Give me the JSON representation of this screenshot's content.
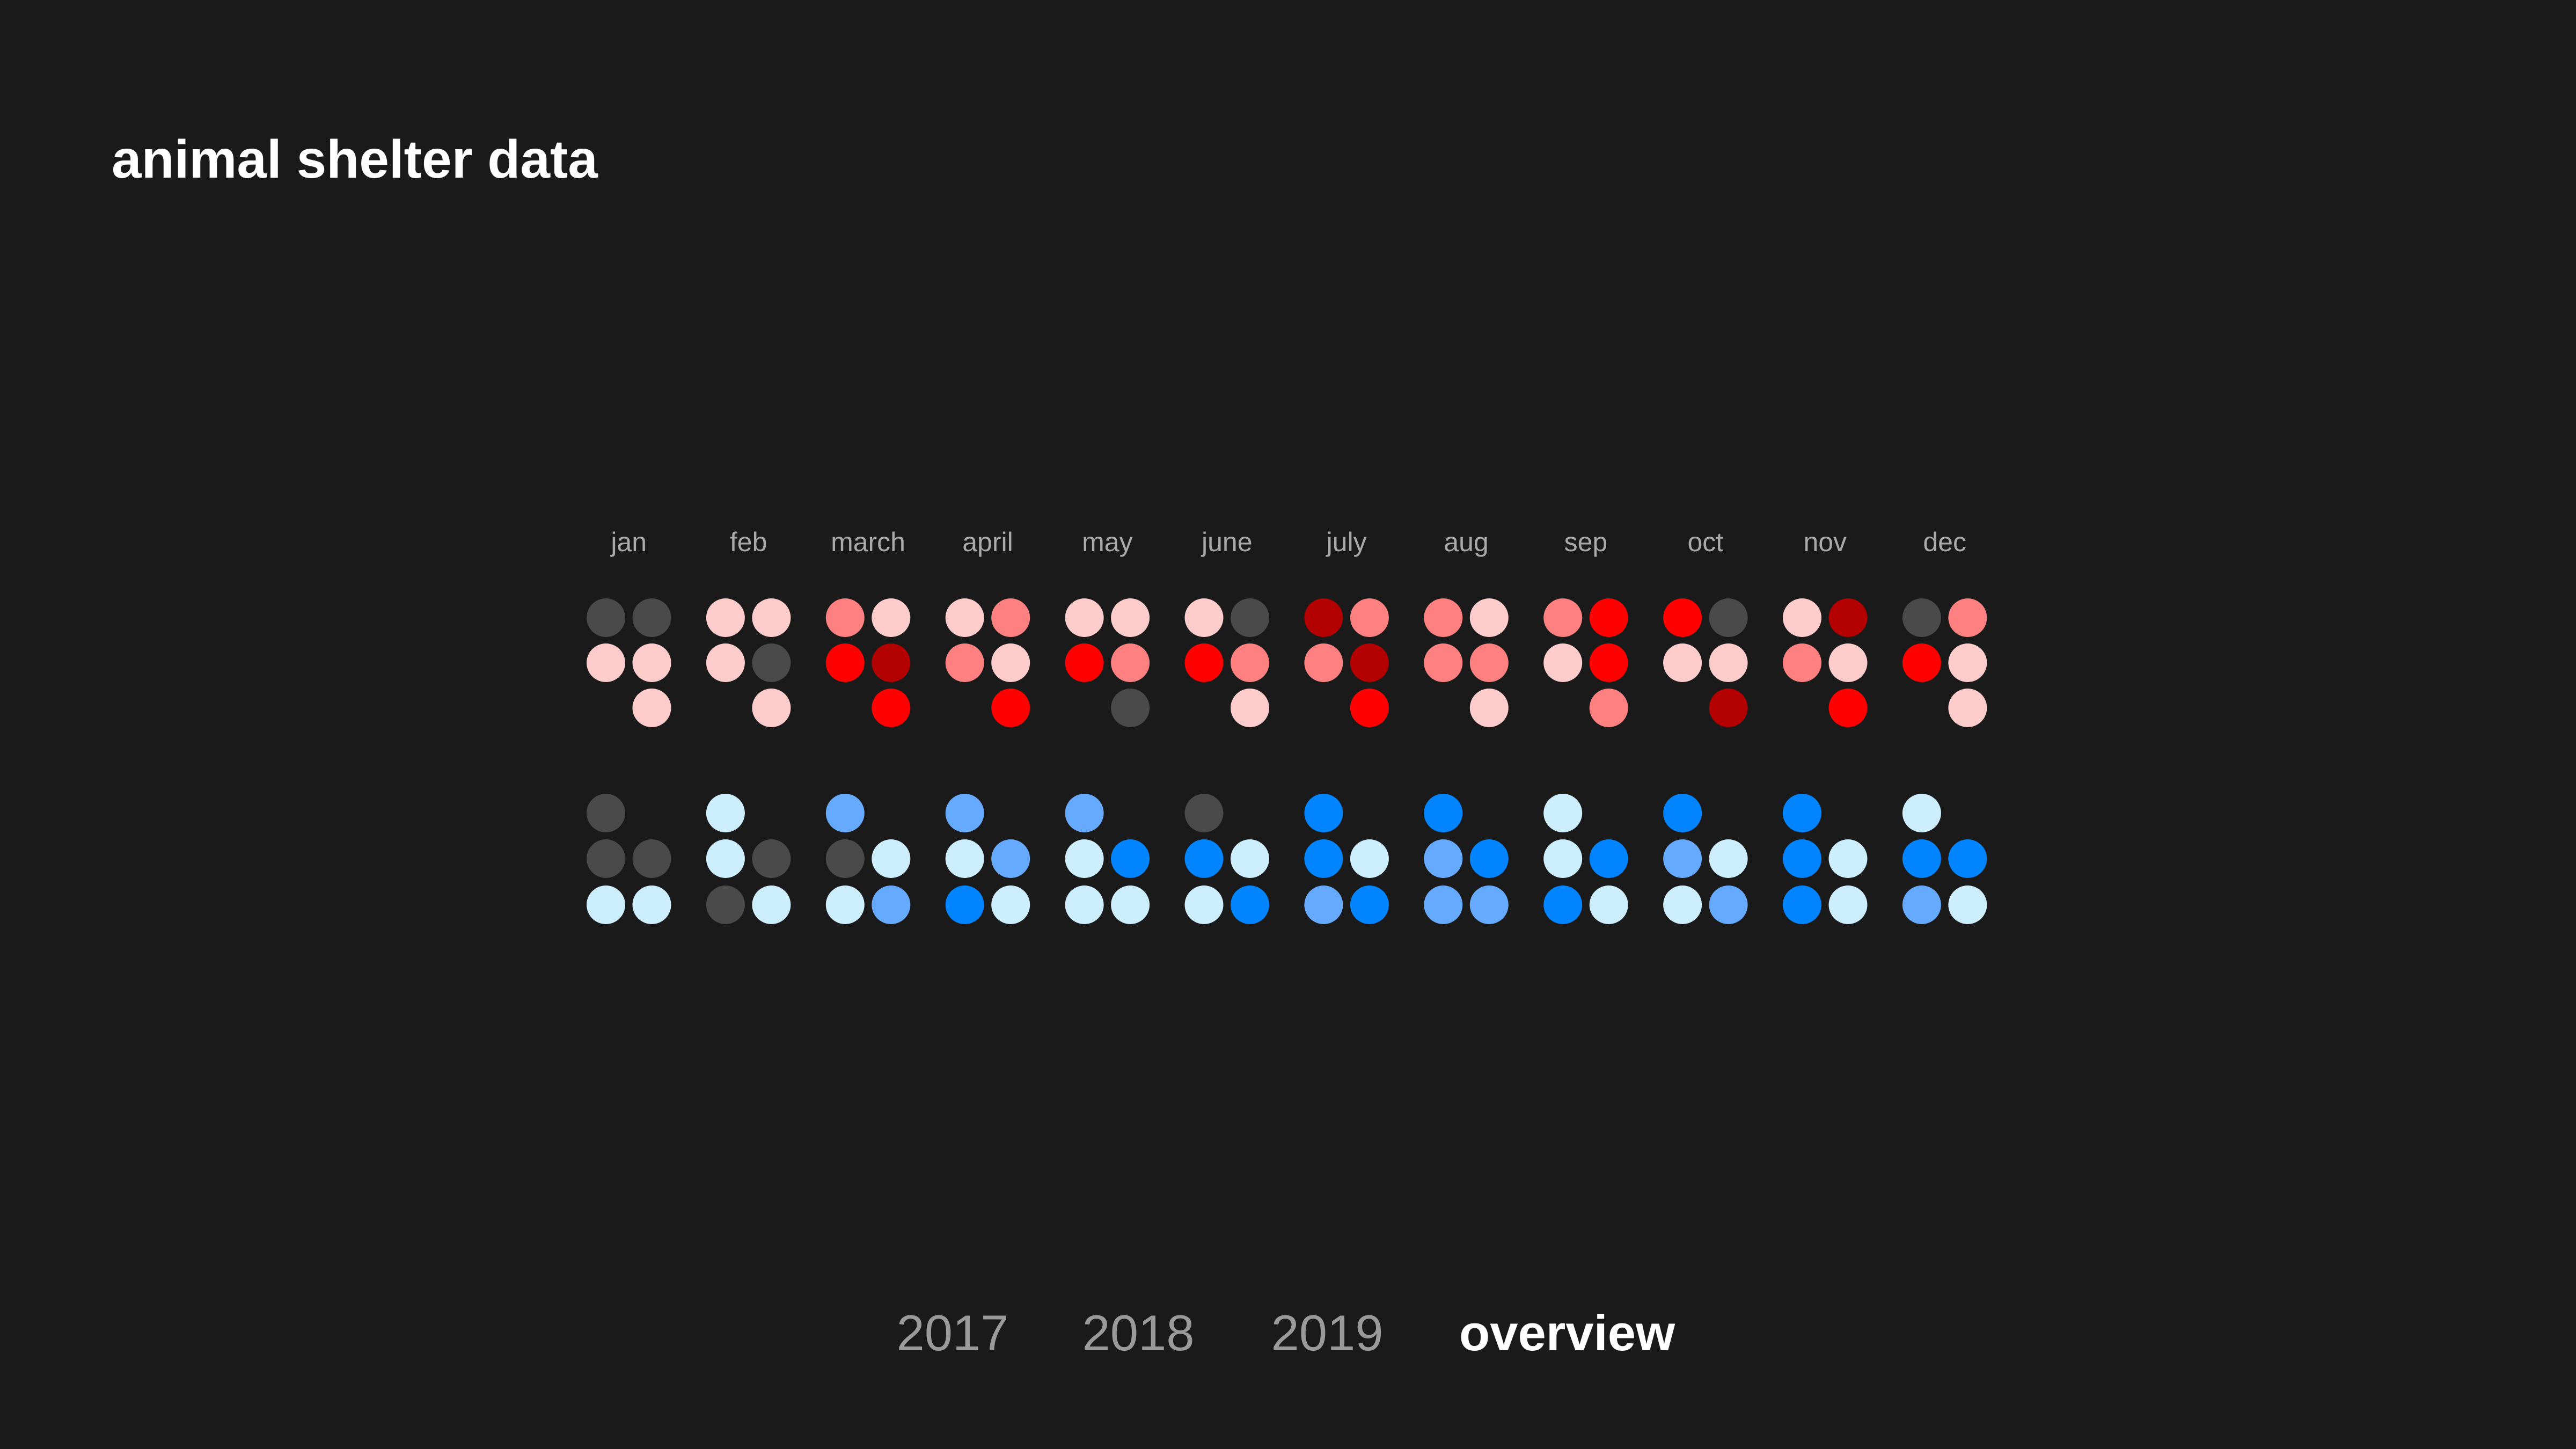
{
  "title": "animal shelter data",
  "nav": {
    "items": [
      {
        "label": "2017",
        "active": false
      },
      {
        "label": "2018",
        "active": false
      },
      {
        "label": "2019",
        "active": false
      },
      {
        "label": "overview",
        "active": true
      }
    ]
  },
  "chart_data": {
    "type": "heatmap",
    "title": "animal shelter data",
    "categories": [
      "jan",
      "feb",
      "march",
      "april",
      "may",
      "june",
      "july",
      "aug",
      "sep",
      "oct",
      "nov",
      "dec"
    ],
    "palette": {
      "G": "#4a4a4a",
      "P": "#ffcccc",
      "S": "#ff8080",
      "R": "#ff0000",
      "D": "#b30000",
      "L": "#cceeff",
      "M": "#66aaff",
      "B": "#0084ff"
    },
    "series": [
      {
        "name": "red",
        "cells": [
          [
            [
              "G",
              "G"
            ],
            [
              "P",
              "P"
            ],
            [
              null,
              "P"
            ]
          ],
          [
            [
              "P",
              "P"
            ],
            [
              "P",
              "G"
            ],
            [
              null,
              "P"
            ]
          ],
          [
            [
              "S",
              "P"
            ],
            [
              "R",
              "D"
            ],
            [
              null,
              "R"
            ]
          ],
          [
            [
              "P",
              "S"
            ],
            [
              "S",
              "P"
            ],
            [
              null,
              "R"
            ]
          ],
          [
            [
              "P",
              "P"
            ],
            [
              "R",
              "S"
            ],
            [
              null,
              "G"
            ]
          ],
          [
            [
              "P",
              "G"
            ],
            [
              "R",
              "S"
            ],
            [
              null,
              "P"
            ]
          ],
          [
            [
              "D",
              "S"
            ],
            [
              "S",
              "D"
            ],
            [
              null,
              "R"
            ]
          ],
          [
            [
              "S",
              "P"
            ],
            [
              "S",
              "S"
            ],
            [
              null,
              "P"
            ]
          ],
          [
            [
              "S",
              "R"
            ],
            [
              "P",
              "R"
            ],
            [
              null,
              "S"
            ]
          ],
          [
            [
              "R",
              "G"
            ],
            [
              "P",
              "P"
            ],
            [
              null,
              "D"
            ]
          ],
          [
            [
              "P",
              "D"
            ],
            [
              "S",
              "P"
            ],
            [
              null,
              "R"
            ]
          ],
          [
            [
              "G",
              "S"
            ],
            [
              "R",
              "P"
            ],
            [
              null,
              "P"
            ]
          ]
        ]
      },
      {
        "name": "blue",
        "cells": [
          [
            [
              "G",
              null
            ],
            [
              "G",
              "G"
            ],
            [
              "L",
              "L"
            ]
          ],
          [
            [
              "L",
              null
            ],
            [
              "L",
              "G"
            ],
            [
              "G",
              "L"
            ]
          ],
          [
            [
              "M",
              null
            ],
            [
              "G",
              "L"
            ],
            [
              "L",
              "M"
            ]
          ],
          [
            [
              "M",
              null
            ],
            [
              "L",
              "M"
            ],
            [
              "B",
              "L"
            ]
          ],
          [
            [
              "M",
              null
            ],
            [
              "L",
              "B"
            ],
            [
              "L",
              "L"
            ]
          ],
          [
            [
              "G",
              null
            ],
            [
              "B",
              "L"
            ],
            [
              "L",
              "B"
            ]
          ],
          [
            [
              "B",
              null
            ],
            [
              "B",
              "L"
            ],
            [
              "M",
              "B"
            ]
          ],
          [
            [
              "B",
              null
            ],
            [
              "M",
              "B"
            ],
            [
              "M",
              "M"
            ]
          ],
          [
            [
              "L",
              null
            ],
            [
              "L",
              "B"
            ],
            [
              "B",
              "L"
            ]
          ],
          [
            [
              "B",
              null
            ],
            [
              "M",
              "L"
            ],
            [
              "L",
              "M"
            ]
          ],
          [
            [
              "B",
              null
            ],
            [
              "B",
              "L"
            ],
            [
              "B",
              "L"
            ]
          ],
          [
            [
              "L",
              null
            ],
            [
              "B",
              "B"
            ],
            [
              "M",
              "L"
            ]
          ]
        ]
      }
    ]
  }
}
